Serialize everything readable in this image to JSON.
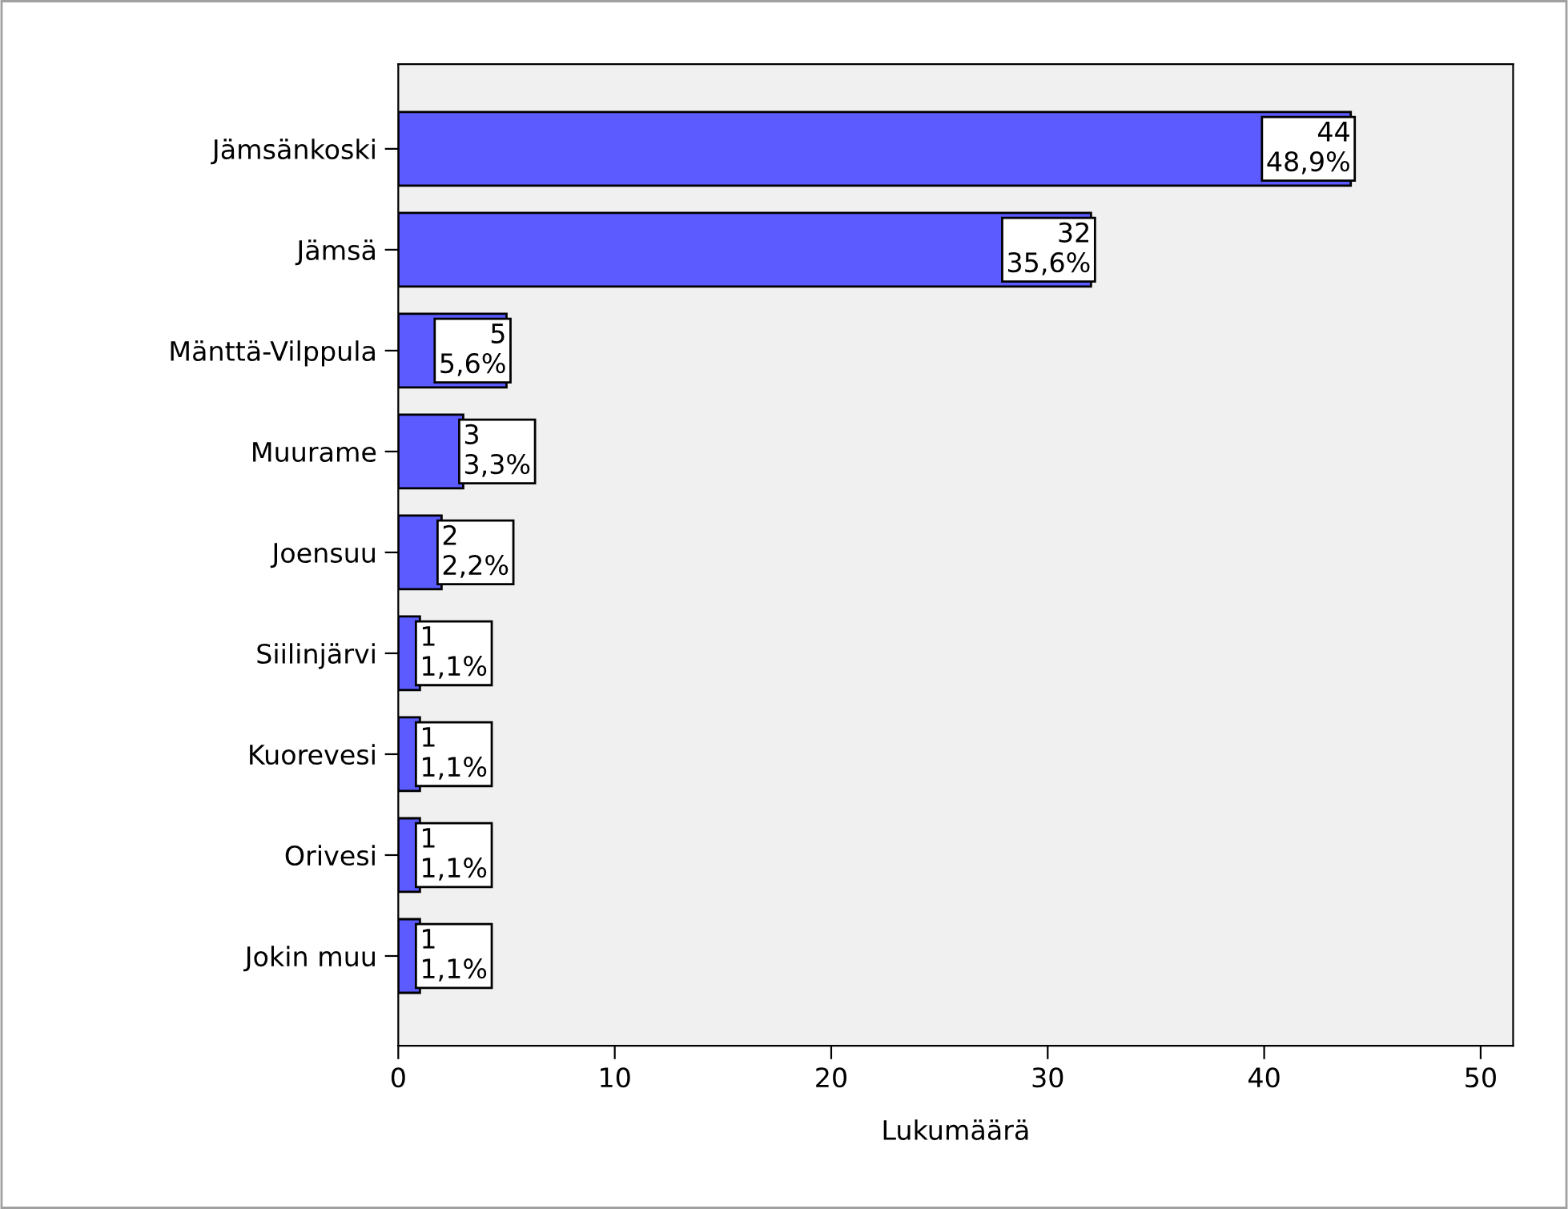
{
  "chart_data": {
    "type": "bar",
    "orientation": "horizontal",
    "xlabel": "Lukumäärä",
    "categories": [
      "Jämsänkoski",
      "Jämsä",
      "Mänttä-Vilppula",
      "Muurame",
      "Joensuu",
      "Siilinjärvi",
      "Kuorevesi",
      "Orivesi",
      "Jokin muu"
    ],
    "values": [
      44,
      32,
      5,
      3,
      2,
      1,
      1,
      1,
      1
    ],
    "value_labels": [
      "44\n48,9%",
      "32\n35,6%",
      "5\n5,6%",
      "3\n3,3%",
      "2\n2,2%",
      "1\n1,1%",
      "1\n1,1%",
      "1\n1,1%",
      "1\n1,1%"
    ],
    "color": "#5b5bff",
    "xlim": [
      0,
      51.5
    ],
    "xticks": [
      0,
      10,
      20,
      30,
      40,
      50
    ],
    "grid": false,
    "legend": false
  }
}
